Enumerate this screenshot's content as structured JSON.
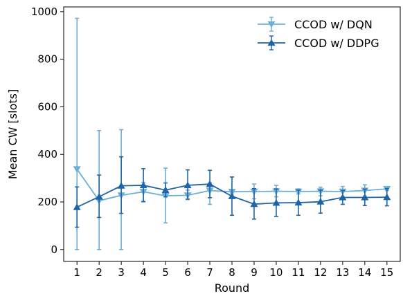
{
  "chart_data": {
    "type": "line",
    "title": "",
    "xlabel": "Round",
    "ylabel": "Mean CW [slots]",
    "x": [
      1,
      2,
      3,
      4,
      5,
      6,
      7,
      8,
      9,
      10,
      11,
      12,
      13,
      14,
      15
    ],
    "xlim": [
      0.4,
      15.6
    ],
    "ylim": [
      -50,
      1020
    ],
    "yticks": [
      0,
      200,
      400,
      600,
      800,
      1000
    ],
    "grid": false,
    "legend_position": "top-right",
    "series": [
      {
        "name": "CCOD w/ DQN",
        "color": "#6baed6",
        "marker": "triangle-down",
        "values": [
          338,
          205,
          228,
          243,
          226,
          228,
          248,
          243,
          244,
          245,
          244,
          245,
          244,
          248,
          255
        ],
        "err_low": [
          0,
          0,
          0,
          200,
          112,
          210,
          190,
          238,
          213,
          222,
          234,
          226,
          222,
          225,
          248
        ],
        "err_high": [
          972,
          500,
          504,
          282,
          342,
          250,
          280,
          250,
          275,
          270,
          255,
          262,
          265,
          272,
          262
        ]
      },
      {
        "name": "CCOD w/ DDPG",
        "color": "#1f64a6",
        "marker": "triangle-up",
        "values": [
          178,
          222,
          268,
          270,
          250,
          270,
          275,
          224,
          191,
          196,
          197,
          201,
          219,
          219,
          220
        ],
        "err_low": [
          94,
          135,
          152,
          202,
          222,
          212,
          218,
          144,
          128,
          139,
          144,
          153,
          190,
          185,
          184
        ],
        "err_high": [
          263,
          313,
          390,
          340,
          280,
          335,
          333,
          305,
          256,
          255,
          250,
          250,
          248,
          254,
          256
        ]
      }
    ]
  }
}
